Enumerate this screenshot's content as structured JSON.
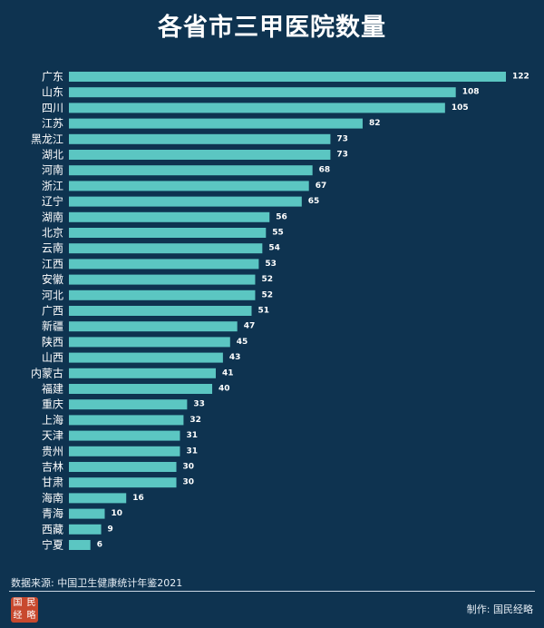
{
  "title": "各省市三甲医院数量",
  "source": "数据来源: 中国卫生健康统计年鉴2021",
  "credit": "制作: 国民经略",
  "logo": "国民经略",
  "colors": {
    "background": "#0e3350",
    "bar": "#5bc6c2",
    "text": "#ffffff"
  },
  "chart_data": {
    "type": "bar",
    "orientation": "horizontal",
    "title": "各省市三甲医院数量",
    "categories": [
      "广东",
      "山东",
      "四川",
      "江苏",
      "黑龙江",
      "湖北",
      "河南",
      "浙江",
      "辽宁",
      "湖南",
      "北京",
      "云南",
      "江西",
      "安徽",
      "河北",
      "广西",
      "新疆",
      "陕西",
      "山西",
      "内蒙古",
      "福建",
      "重庆",
      "上海",
      "天津",
      "贵州",
      "吉林",
      "甘肃",
      "海南",
      "青海",
      "西藏",
      "宁夏"
    ],
    "values": [
      122,
      108,
      105,
      82,
      73,
      73,
      68,
      67,
      65,
      56,
      55,
      54,
      53,
      52,
      52,
      51,
      47,
      45,
      43,
      41,
      40,
      33,
      32,
      31,
      31,
      30,
      30,
      16,
      10,
      9,
      6
    ],
    "xlim": [
      0,
      122
    ],
    "data_labels": true,
    "grid": false
  }
}
